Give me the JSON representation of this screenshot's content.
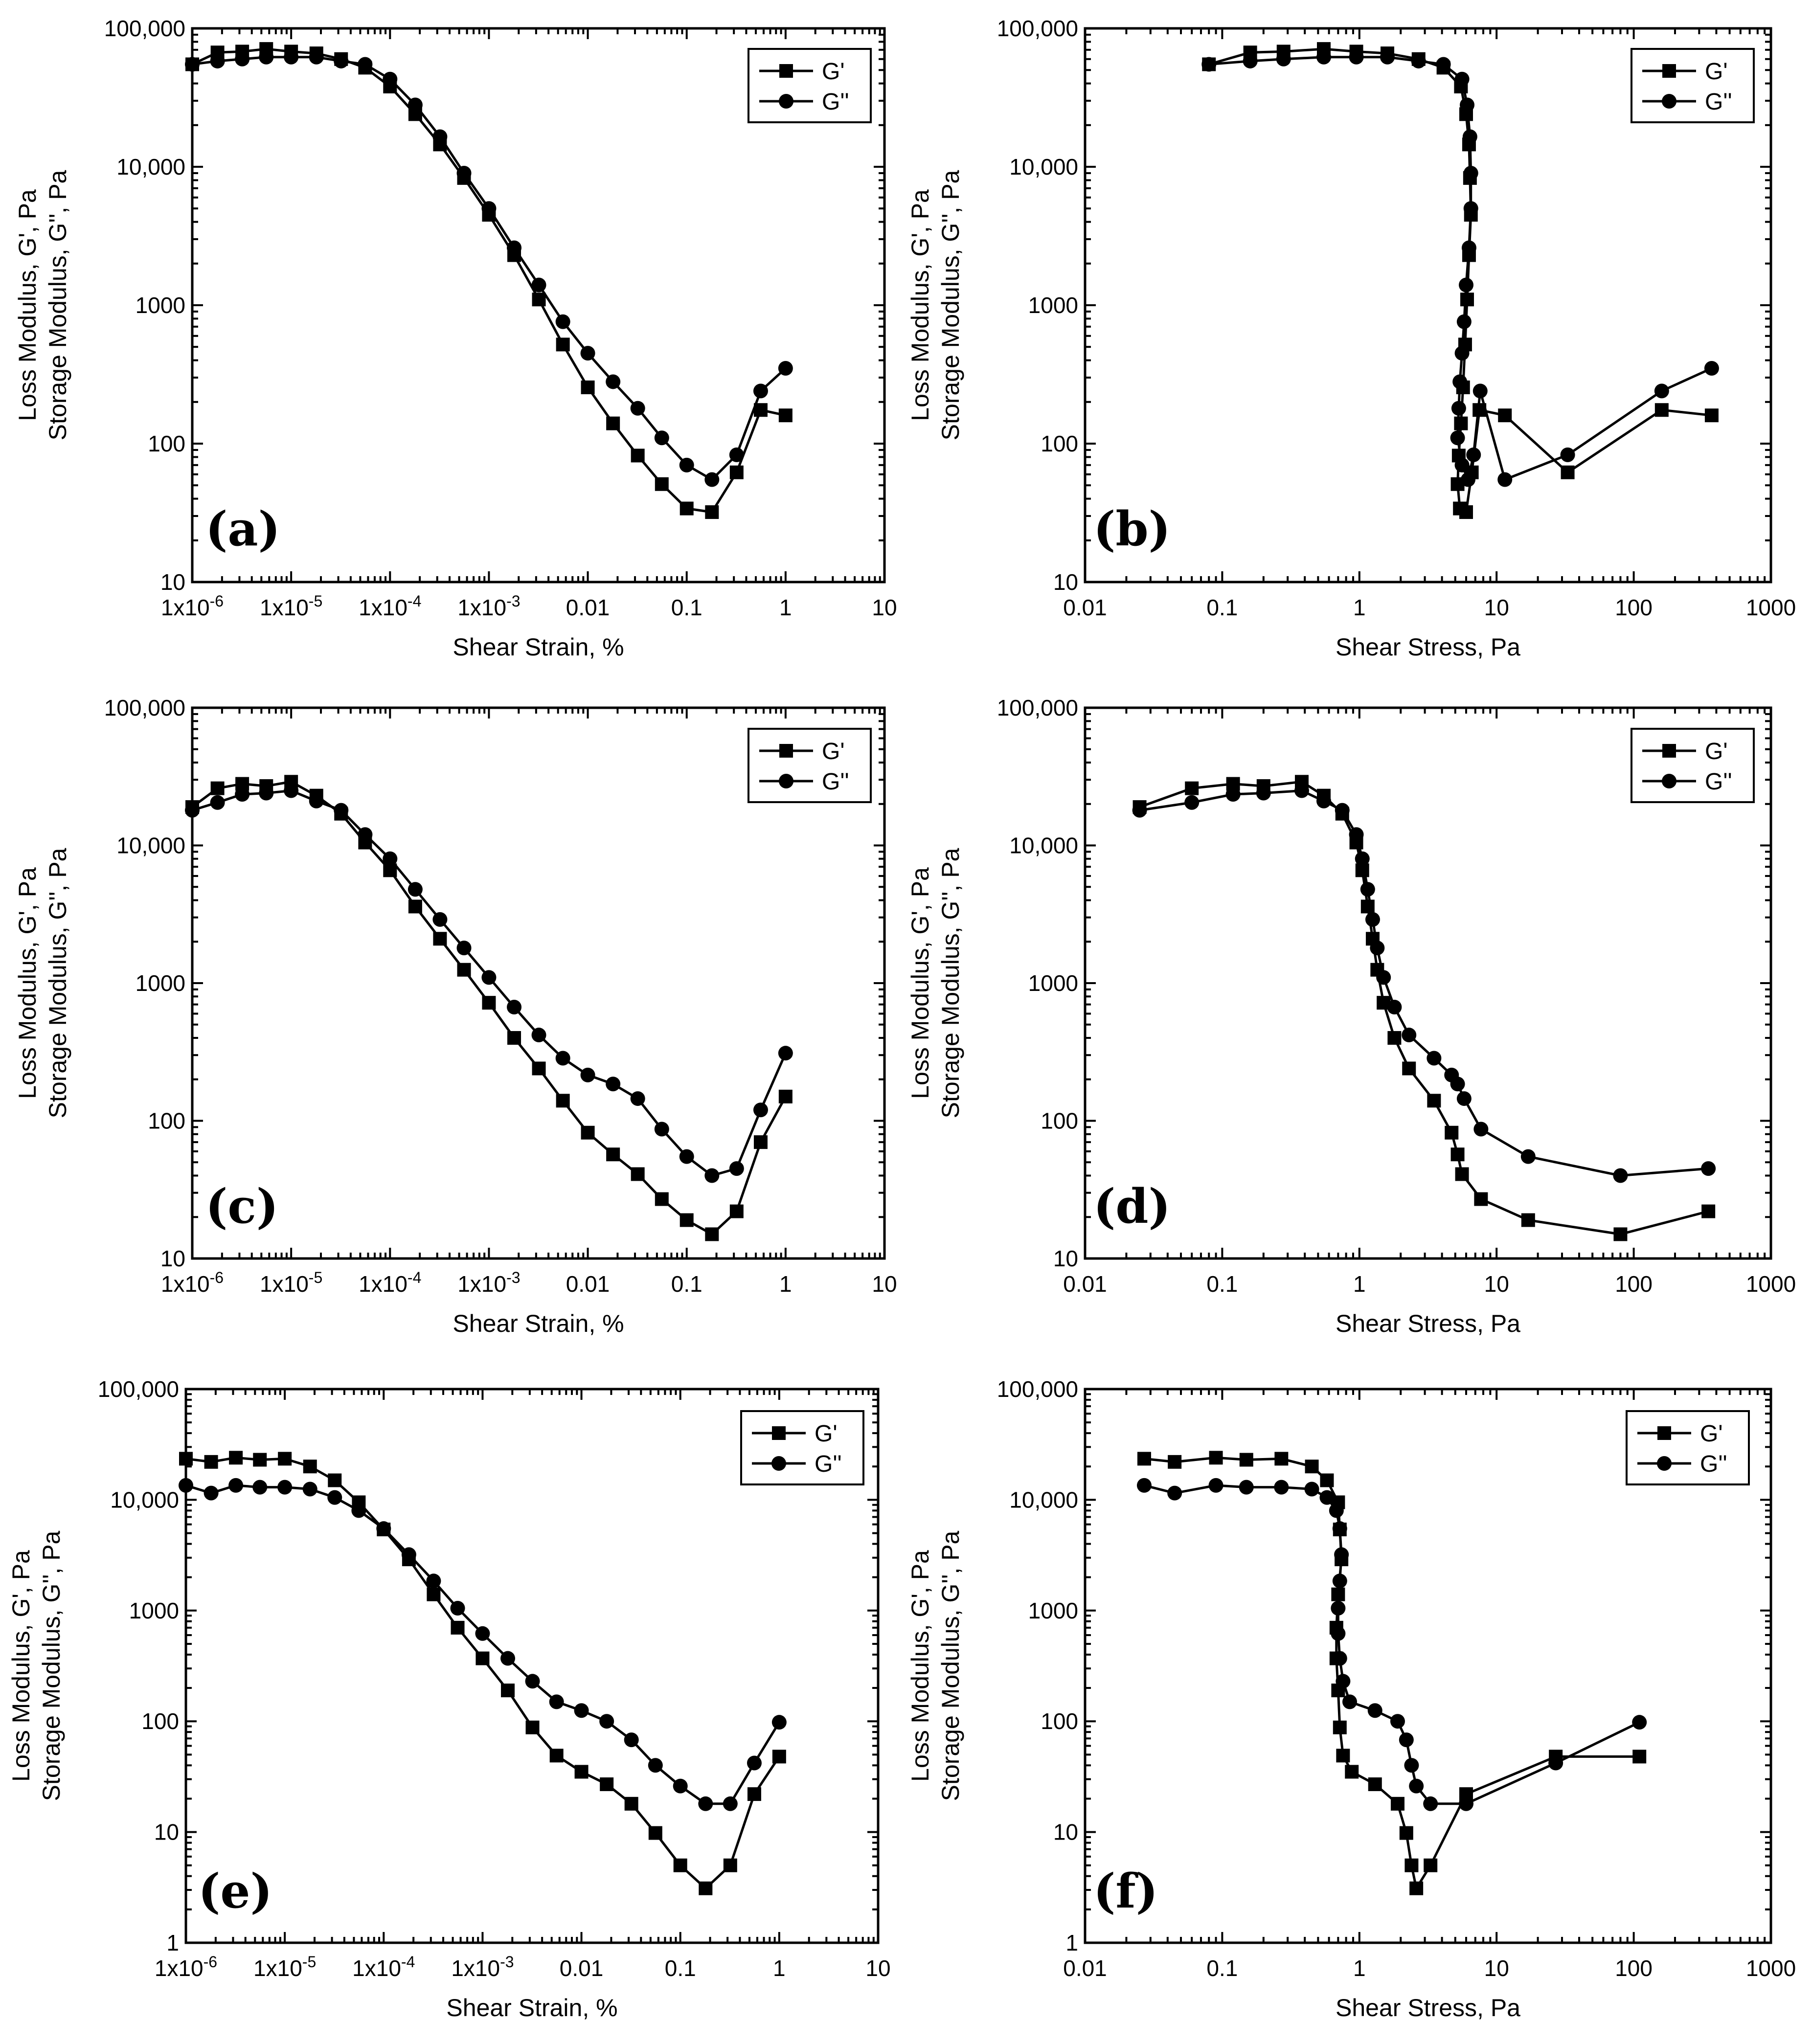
{
  "chart_data": [
    {
      "type": "line",
      "panel": "(a)",
      "xscale": "log",
      "yscale": "log",
      "xlabel": "Shear Strain, %",
      "ylabel": [
        "Loss Modulus, G', Pa",
        "Storage Modulus, G'', Pa"
      ],
      "xlim": [
        1e-06,
        10
      ],
      "ylim": [
        10,
        100000
      ],
      "xticks": [
        "1x10-6",
        "1x10-5",
        "1x10-4",
        "1x10-3",
        "0.01",
        "0.1",
        "1",
        "10"
      ],
      "yticks": [
        "10",
        "100",
        "1000",
        "10,000",
        "100,000"
      ],
      "legend_position": "top-right",
      "series": [
        {
          "name": "G'",
          "marker": "square",
          "x": [
            1e-06,
            1.8e-06,
            3.2e-06,
            5.6e-06,
            1e-05,
            1.8e-05,
            3.2e-05,
            5.6e-05,
            0.0001,
            0.00018,
            0.00032,
            0.00056,
            0.001,
            0.0018,
            0.0032,
            0.0056,
            0.01,
            0.018,
            0.032,
            0.056,
            0.1,
            0.18,
            0.32,
            0.56,
            1
          ],
          "y": [
            55000,
            67000,
            68000,
            71000,
            68000,
            66000,
            60000,
            52000,
            38000,
            24000,
            14500,
            8300,
            4500,
            2300,
            1100,
            520,
            255,
            140,
            82,
            51,
            34,
            32,
            62,
            175,
            160
          ]
        },
        {
          "name": "G''",
          "marker": "circle",
          "x": [
            1e-06,
            1.8e-06,
            3.2e-06,
            5.6e-06,
            1e-05,
            1.8e-05,
            3.2e-05,
            5.6e-05,
            0.0001,
            0.00018,
            0.00032,
            0.00056,
            0.001,
            0.0018,
            0.0032,
            0.0056,
            0.01,
            0.018,
            0.032,
            0.056,
            0.1,
            0.18,
            0.32,
            0.56,
            1
          ],
          "y": [
            55000,
            58000,
            60000,
            62000,
            62000,
            62000,
            58000,
            55000,
            43000,
            28000,
            16500,
            9000,
            5000,
            2600,
            1400,
            760,
            450,
            280,
            180,
            110,
            70,
            55,
            83,
            240,
            350
          ]
        }
      ]
    },
    {
      "type": "line",
      "panel": "(b)",
      "xscale": "log",
      "yscale": "log",
      "xlabel": "Shear Stress, Pa",
      "ylabel": [
        "Loss Modulus, G', Pa",
        "Storage Modulus, G'', Pa"
      ],
      "xlim": [
        0.01,
        1000
      ],
      "ylim": [
        10,
        100000
      ],
      "xticks": [
        "0.01",
        "0.1",
        "1",
        "10",
        "100",
        "1000"
      ],
      "yticks": [
        "10",
        "100",
        "1000",
        "10,000",
        "100,000"
      ],
      "legend_position": "top-right",
      "series": [
        {
          "name": "G'",
          "marker": "square",
          "x": [
            0.08,
            0.16,
            0.28,
            0.55,
            0.95,
            1.6,
            2.7,
            4.1,
            5.5,
            6.0,
            6.3,
            6.4,
            6.5,
            6.3,
            6.1,
            5.9,
            5.7,
            5.5,
            5.3,
            5.2,
            5.4,
            6.0,
            6.6,
            7.5,
            11.5,
            33,
            160,
            370
          ],
          "y": [
            55000,
            67000,
            68000,
            71000,
            68000,
            66000,
            60000,
            52000,
            38000,
            24000,
            14500,
            8300,
            4500,
            2300,
            1100,
            520,
            255,
            140,
            82,
            51,
            34,
            32,
            62,
            175,
            160,
            62,
            175,
            160
          ]
        },
        {
          "name": "G''",
          "marker": "circle",
          "x": [
            0.08,
            0.16,
            0.28,
            0.55,
            0.95,
            1.6,
            2.7,
            4.1,
            5.6,
            6.1,
            6.4,
            6.5,
            6.5,
            6.3,
            6.0,
            5.8,
            5.6,
            5.4,
            5.3,
            5.2,
            5.6,
            6.2,
            6.8,
            7.6,
            11.5,
            33,
            160,
            370
          ],
          "y": [
            55000,
            58000,
            60000,
            62000,
            62000,
            62000,
            58000,
            55000,
            43000,
            28000,
            16500,
            9000,
            5000,
            2600,
            1400,
            760,
            450,
            280,
            180,
            110,
            70,
            55,
            83,
            240,
            55,
            83,
            240,
            350
          ]
        }
      ]
    },
    {
      "type": "line",
      "panel": "(c)",
      "xscale": "log",
      "yscale": "log",
      "xlabel": "Shear Strain, %",
      "ylabel": [
        "Loss Modulus, G', Pa",
        "Storage Modulus, G'', Pa"
      ],
      "xlim": [
        1e-06,
        10
      ],
      "ylim": [
        10,
        100000
      ],
      "xticks": [
        "1x10-6",
        "1x10-5",
        "1x10-4",
        "1x10-3",
        "0.01",
        "0.1",
        "1",
        "10"
      ],
      "yticks": [
        "10",
        "100",
        "1000",
        "10,000",
        "100,000"
      ],
      "legend_position": "top-right",
      "series": [
        {
          "name": "G'",
          "marker": "square",
          "x": [
            1e-06,
            1.8e-06,
            3.2e-06,
            5.6e-06,
            1e-05,
            1.8e-05,
            3.2e-05,
            5.6e-05,
            0.0001,
            0.00018,
            0.00032,
            0.00056,
            0.001,
            0.0018,
            0.0032,
            0.0056,
            0.01,
            0.018,
            0.032,
            0.056,
            0.1,
            0.18,
            0.32,
            0.56,
            1
          ],
          "y": [
            19000,
            26000,
            28000,
            27000,
            29000,
            23000,
            17000,
            10500,
            6600,
            3600,
            2100,
            1250,
            720,
            400,
            240,
            140,
            82,
            57,
            41,
            27,
            19,
            15,
            22,
            70,
            150
          ]
        },
        {
          "name": "G''",
          "marker": "circle",
          "x": [
            1e-06,
            1.8e-06,
            3.2e-06,
            5.6e-06,
            1e-05,
            1.8e-05,
            3.2e-05,
            5.6e-05,
            0.0001,
            0.00018,
            0.00032,
            0.00056,
            0.001,
            0.0018,
            0.0032,
            0.0056,
            0.01,
            0.018,
            0.032,
            0.056,
            0.1,
            0.18,
            0.32,
            0.56,
            1
          ],
          "y": [
            18000,
            20500,
            23500,
            24000,
            25000,
            21000,
            18000,
            12000,
            8000,
            4800,
            2900,
            1800,
            1100,
            670,
            420,
            285,
            215,
            185,
            145,
            87,
            55,
            40,
            45,
            120,
            310
          ]
        }
      ]
    },
    {
      "type": "line",
      "panel": "(d)",
      "xscale": "log",
      "yscale": "log",
      "xlabel": "Shear Stress, Pa",
      "ylabel": [
        "Loss Modulus, G', Pa",
        "Storage Modulus, G'', Pa"
      ],
      "xlim": [
        0.01,
        1000
      ],
      "ylim": [
        10,
        100000
      ],
      "xticks": [
        "0.01",
        "0.1",
        "1",
        "10",
        "100",
        "1000"
      ],
      "yticks": [
        "10",
        "100",
        "1000",
        "10,000",
        "100,000"
      ],
      "legend_position": "top-right",
      "series": [
        {
          "name": "G'",
          "marker": "square",
          "x": [
            0.025,
            0.06,
            0.12,
            0.2,
            0.38,
            0.55,
            0.75,
            0.95,
            1.05,
            1.15,
            1.25,
            1.35,
            1.5,
            1.8,
            2.3,
            3.5,
            4.7,
            5.2,
            5.6,
            7.7,
            17,
            80,
            350
          ],
          "y": [
            19000,
            26000,
            28000,
            27000,
            29000,
            23000,
            17000,
            10500,
            6600,
            3600,
            2100,
            1250,
            720,
            400,
            240,
            140,
            82,
            57,
            41,
            27,
            19,
            15,
            22
          ]
        },
        {
          "name": "G''",
          "marker": "circle",
          "x": [
            0.025,
            0.06,
            0.12,
            0.2,
            0.38,
            0.55,
            0.75,
            0.95,
            1.05,
            1.15,
            1.25,
            1.35,
            1.5,
            1.8,
            2.3,
            3.5,
            4.7,
            5.2,
            5.8,
            7.7,
            17,
            80,
            350
          ],
          "y": [
            18000,
            20500,
            23500,
            24000,
            25000,
            21000,
            18000,
            12000,
            8000,
            4800,
            2900,
            1800,
            1100,
            670,
            420,
            285,
            215,
            185,
            145,
            87,
            55,
            40,
            45
          ]
        }
      ]
    },
    {
      "type": "line",
      "panel": "(e)",
      "xscale": "log",
      "yscale": "log",
      "xlabel": "Shear Strain, %",
      "ylabel": [
        "Loss Modulus, G', Pa",
        "Storage Modulus, G'', Pa"
      ],
      "xlim": [
        1e-06,
        10
      ],
      "ylim": [
        1,
        100000
      ],
      "xticks": [
        "1x10-6",
        "1x10-5",
        "1x10-4",
        "1x10-3",
        "0.01",
        "0.1",
        "1",
        "10"
      ],
      "yticks": [
        "1",
        "10",
        "100",
        "1000",
        "10,000",
        "100,000"
      ],
      "legend_position": "top-right",
      "series": [
        {
          "name": "G'",
          "marker": "square",
          "x": [
            1e-06,
            1.8e-06,
            3.2e-06,
            5.6e-06,
            1e-05,
            1.8e-05,
            3.2e-05,
            5.6e-05,
            0.0001,
            0.00018,
            0.00032,
            0.00056,
            0.001,
            0.0018,
            0.0032,
            0.0056,
            0.01,
            0.018,
            0.032,
            0.056,
            0.1,
            0.18,
            0.32,
            0.56,
            1
          ],
          "y": [
            23500,
            22000,
            24000,
            23000,
            23500,
            20000,
            15000,
            9500,
            5400,
            2900,
            1400,
            700,
            370,
            190,
            88,
            49,
            35,
            27,
            18,
            9.8,
            5,
            3.1,
            5,
            22,
            48
          ]
        },
        {
          "name": "G''",
          "marker": "circle",
          "x": [
            1e-06,
            1.8e-06,
            3.2e-06,
            5.6e-06,
            1e-05,
            1.8e-05,
            3.2e-05,
            5.6e-05,
            0.0001,
            0.00018,
            0.00032,
            0.00056,
            0.001,
            0.0018,
            0.0032,
            0.0056,
            0.01,
            0.018,
            0.032,
            0.056,
            0.1,
            0.18,
            0.32,
            0.56,
            1
          ],
          "y": [
            13500,
            11500,
            13500,
            13000,
            13000,
            12500,
            10500,
            8000,
            5500,
            3200,
            1850,
            1050,
            620,
            370,
            230,
            150,
            125,
            100,
            68,
            40,
            26,
            18,
            18,
            42,
            98
          ]
        }
      ]
    },
    {
      "type": "line",
      "panel": "(f)",
      "xscale": "log",
      "yscale": "log",
      "xlabel": "Shear Stress, Pa",
      "ylabel": [
        "Loss Modulus, G', Pa",
        "Storage Modulus, G'', Pa"
      ],
      "xlim": [
        0.01,
        1000
      ],
      "ylim": [
        1,
        100000
      ],
      "xticks": [
        "0.01",
        "0.1",
        "1",
        "10",
        "100",
        "1000"
      ],
      "yticks": [
        "1",
        "10",
        "100",
        "1000",
        "10,000",
        "100,000"
      ],
      "legend_position": "top-right",
      "series": [
        {
          "name": "G'",
          "marker": "square",
          "x": [
            0.027,
            0.045,
            0.09,
            0.15,
            0.27,
            0.45,
            0.58,
            0.7,
            0.72,
            0.74,
            0.7,
            0.68,
            0.68,
            0.7,
            0.72,
            0.76,
            0.88,
            1.3,
            1.9,
            2.2,
            2.4,
            2.6,
            3.3,
            6.0,
            27,
            110
          ],
          "y": [
            23500,
            22000,
            24000,
            23000,
            23500,
            20000,
            15000,
            9500,
            5400,
            2900,
            1400,
            700,
            370,
            190,
            88,
            49,
            35,
            27,
            18,
            9.8,
            5,
            3.1,
            5,
            22,
            48,
            48
          ]
        },
        {
          "name": "G''",
          "marker": "circle",
          "x": [
            0.027,
            0.045,
            0.09,
            0.15,
            0.27,
            0.45,
            0.58,
            0.68,
            0.72,
            0.74,
            0.72,
            0.7,
            0.7,
            0.72,
            0.76,
            0.85,
            1.3,
            1.9,
            2.2,
            2.4,
            2.6,
            3.3,
            6.0,
            27,
            110
          ],
          "y": [
            13500,
            11500,
            13500,
            13000,
            13000,
            12500,
            10500,
            8000,
            5500,
            3200,
            1850,
            1050,
            620,
            370,
            230,
            150,
            125,
            100,
            68,
            40,
            26,
            18,
            18,
            42,
            98
          ]
        }
      ]
    }
  ]
}
